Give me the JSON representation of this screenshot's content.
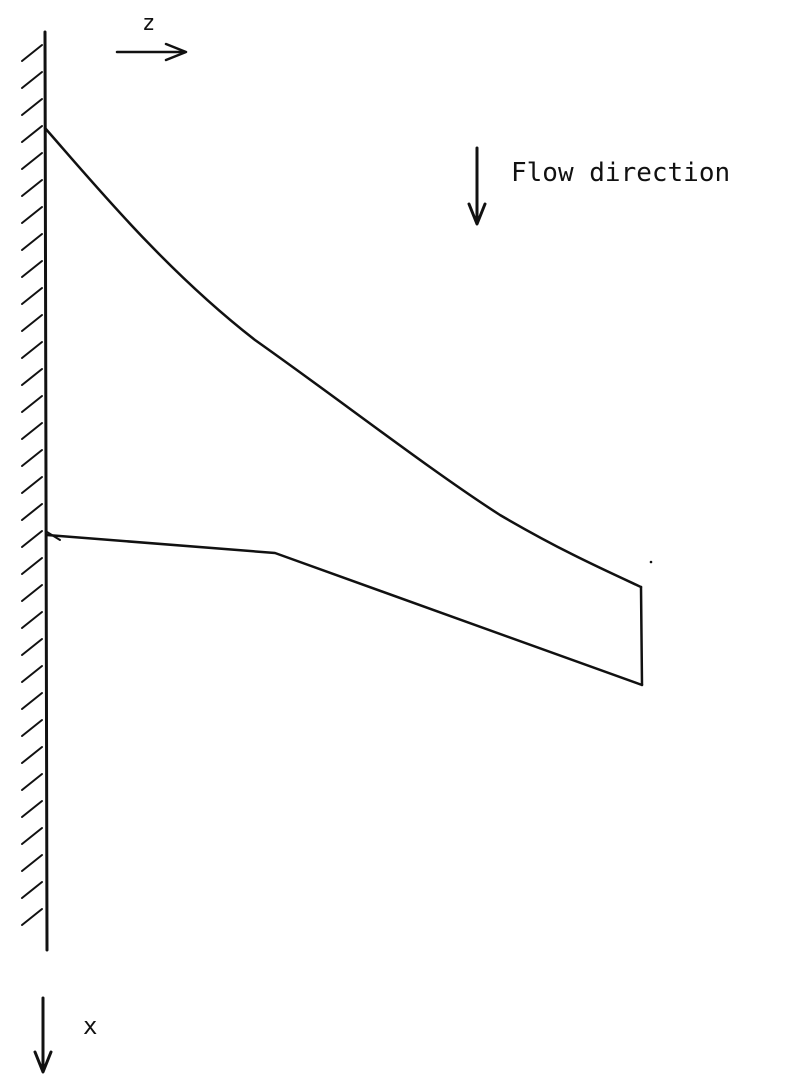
{
  "labels": {
    "z_axis": "z",
    "flow": "Flow direction",
    "x_axis": "x"
  },
  "colors": {
    "ink": "#111111",
    "paper": "#ffffff"
  }
}
